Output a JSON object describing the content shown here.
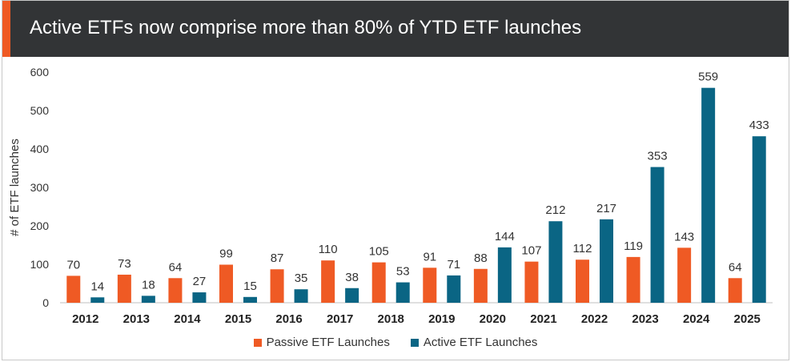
{
  "title": "Active ETFs now comprise more than 80% of YTD ETF launches",
  "chart_data": {
    "type": "bar",
    "ylabel": "# of ETF launches",
    "ylim": [
      0,
      600
    ],
    "yticks": [
      0,
      100,
      200,
      300,
      400,
      500,
      600
    ],
    "categories": [
      "2012",
      "2013",
      "2014",
      "2015",
      "2016",
      "2017",
      "2018",
      "2019",
      "2020",
      "2021",
      "2022",
      "2023",
      "2024",
      "2025"
    ],
    "series": [
      {
        "name": "Passive ETF Launches",
        "color": "#ef5a24",
        "values": [
          70,
          73,
          64,
          99,
          87,
          110,
          105,
          91,
          88,
          107,
          112,
          119,
          143,
          64
        ]
      },
      {
        "name": "Active ETF Launches",
        "color": "#0a6584",
        "values": [
          14,
          18,
          27,
          15,
          35,
          38,
          53,
          71,
          144,
          212,
          217,
          353,
          559,
          433
        ]
      }
    ],
    "legend_position": "bottom",
    "grid": false
  }
}
